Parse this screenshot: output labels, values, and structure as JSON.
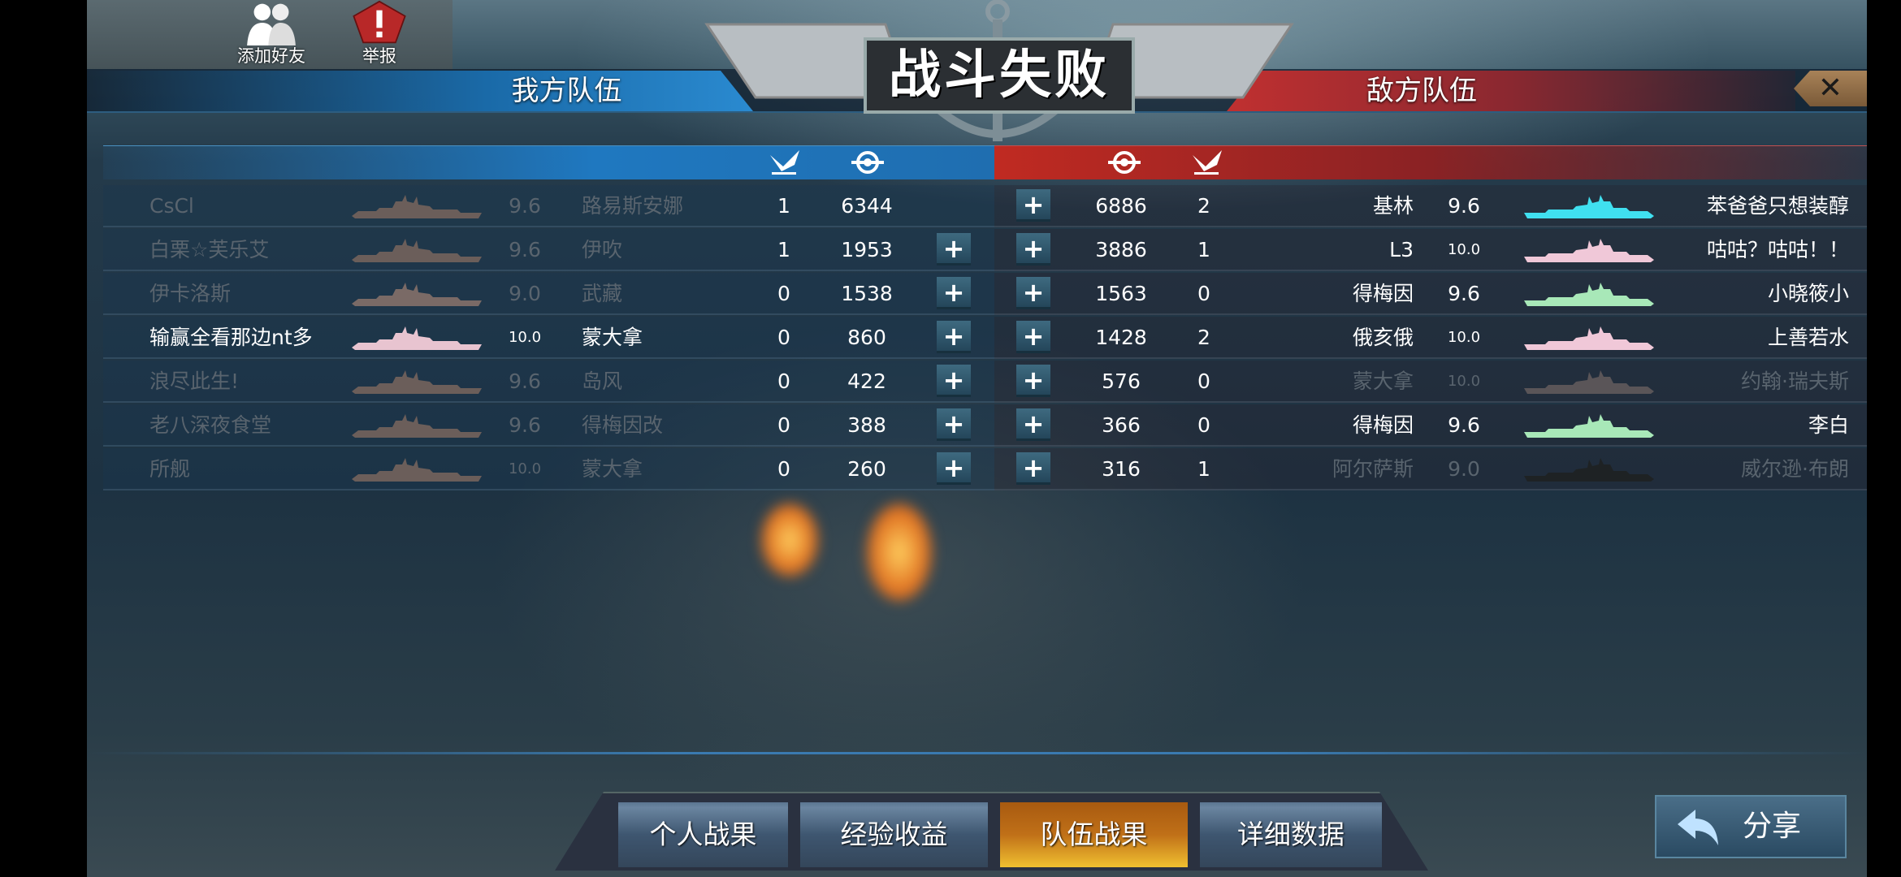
{
  "top_buttons": {
    "add_friend": "添加好友",
    "report": "举报"
  },
  "title": "战斗失败",
  "my_team_label": "我方队伍",
  "enemy_team_label": "敌方队伍",
  "close_label": "✕",
  "column_icons": [
    "kills-icon",
    "score-icon"
  ],
  "my_team": [
    {
      "player": "CsCl",
      "tier": "9.6",
      "ship": "路易斯安娜",
      "kills": "1",
      "score": "6344",
      "dim": true,
      "ship_color": "#6b5e5a",
      "plus": false
    },
    {
      "player": "白栗☆芙乐艾",
      "tier": "9.6",
      "ship": "伊吹",
      "kills": "1",
      "score": "1953",
      "dim": true,
      "ship_color": "#6b5e5a",
      "plus": true
    },
    {
      "player": "伊卡洛斯",
      "tier": "9.0",
      "ship": "武藏",
      "kills": "0",
      "score": "1538",
      "dim": true,
      "ship_color": "#7a6a66",
      "plus": true
    },
    {
      "player": "输赢全看那边nt多",
      "tier": "10.0",
      "ship": "蒙大拿",
      "kills": "0",
      "score": "860",
      "dim": false,
      "ship_color": "#e8c4d0",
      "plus": true
    },
    {
      "player": "浪尽此生!",
      "tier": "9.6",
      "ship": "岛风",
      "kills": "0",
      "score": "422",
      "dim": true,
      "ship_color": "#6b5e5a",
      "plus": true
    },
    {
      "player": "老八深夜食堂",
      "tier": "9.6",
      "ship": "得梅因改",
      "kills": "0",
      "score": "388",
      "dim": true,
      "ship_color": "#6b5e5a",
      "plus": true
    },
    {
      "player": "所舰",
      "tier": "10.0",
      "ship": "蒙大拿",
      "kills": "0",
      "score": "260",
      "dim": true,
      "ship_color": "#6b5e5a",
      "plus": true
    }
  ],
  "enemy_team": [
    {
      "player": "苯爸爸只想装醇",
      "tier": "9.6",
      "ship": "基林",
      "kills": "2",
      "score": "6886",
      "dim": false,
      "ship_color": "#40e0f0"
    },
    {
      "player": "咕咕？咕咕！！",
      "tier": "10.0",
      "ship": "L3",
      "kills": "1",
      "score": "3886",
      "dim": false,
      "ship_color": "#f0c8d8"
    },
    {
      "player": "小晓筱小",
      "tier": "9.6",
      "ship": "得梅因",
      "kills": "0",
      "score": "1563",
      "dim": false,
      "ship_color": "#a8e8b8"
    },
    {
      "player": "上善若水",
      "tier": "10.0",
      "ship": "俄亥俄",
      "kills": "2",
      "score": "1428",
      "dim": false,
      "ship_color": "#f0c8d8"
    },
    {
      "player": "约翰·瑞夫斯",
      "tier": "10.0",
      "ship": "蒙大拿",
      "kills": "0",
      "score": "576",
      "dim": true,
      "ship_color": "#5a5558"
    },
    {
      "player": "李白",
      "tier": "9.6",
      "ship": "得梅因",
      "kills": "0",
      "score": "366",
      "dim": false,
      "ship_color": "#a8e8b8"
    },
    {
      "player": "威尔逊·布朗",
      "tier": "9.0",
      "ship": "阿尔萨斯",
      "kills": "1",
      "score": "316",
      "dim": true,
      "ship_color": "#1e2224"
    }
  ],
  "tabs": [
    {
      "label": "个人战果",
      "active": false
    },
    {
      "label": "经验收益",
      "active": false
    },
    {
      "label": "队伍战果",
      "active": true
    },
    {
      "label": "详细数据",
      "active": false
    }
  ],
  "share_label": "分享",
  "colors": {
    "my_team": "#1f78c0",
    "enemy_team": "#c02a22",
    "active_tab": "#c07018"
  }
}
